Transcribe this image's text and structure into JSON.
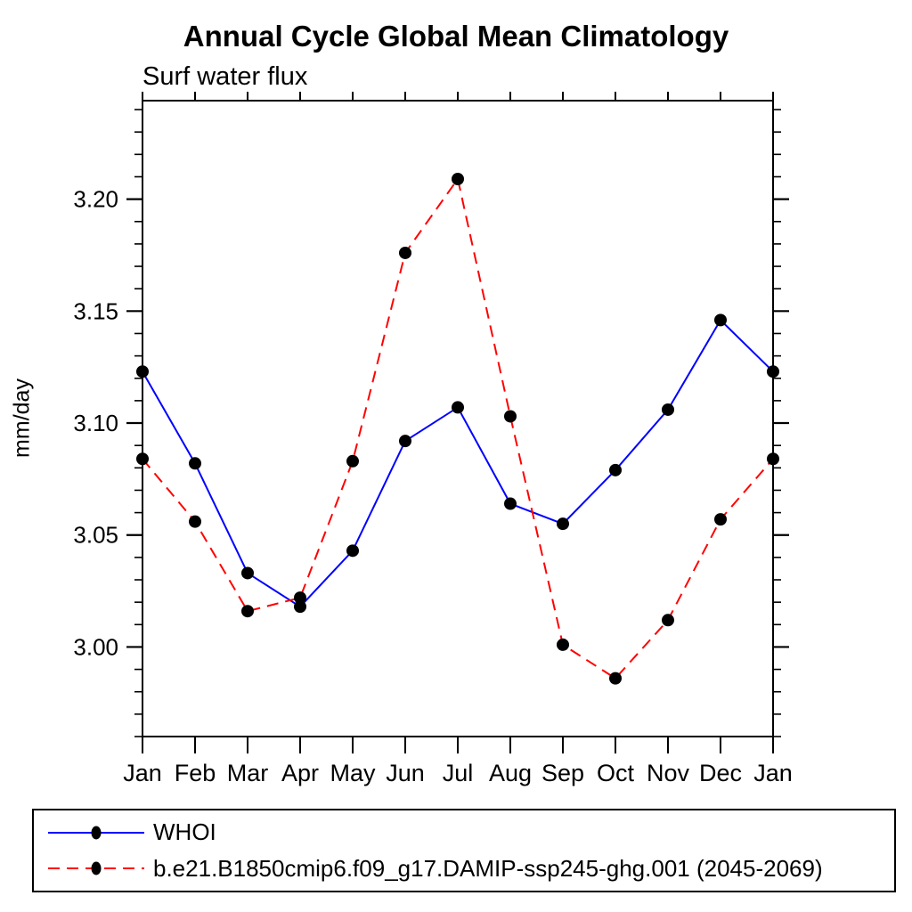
{
  "title": "Annual Cycle Global Mean Climatology",
  "subtitle": "Surf water flux",
  "chart_data": {
    "type": "line",
    "title": "Annual Cycle Global Mean Climatology",
    "subtitle": "Surf water flux",
    "xlabel": "",
    "ylabel": "mm/day",
    "categories": [
      "Jan",
      "Feb",
      "Mar",
      "Apr",
      "May",
      "Jun",
      "Jul",
      "Aug",
      "Sep",
      "Oct",
      "Nov",
      "Dec",
      "Jan"
    ],
    "series": [
      {
        "name": "WHOI",
        "color": "#0000ff",
        "style": "solid",
        "marker": "filled-circle",
        "marker_color": "#000000",
        "values": [
          3.123,
          3.082,
          3.033,
          3.018,
          3.043,
          3.092,
          3.107,
          3.064,
          3.055,
          3.079,
          3.106,
          3.146,
          3.123
        ]
      },
      {
        "name": "b.e21.B1850cmip6.f09_g17.DAMIP-ssp245-ghg.001 (2045-2069)",
        "color": "#ff0000",
        "style": "dashed",
        "marker": "filled-circle",
        "marker_color": "#000000",
        "values": [
          3.084,
          3.056,
          3.016,
          3.022,
          3.083,
          3.176,
          3.209,
          3.103,
          3.001,
          2.986,
          3.012,
          3.057,
          3.084
        ]
      }
    ],
    "ylim": [
      2.96,
      3.244
    ],
    "y_major_ticks": [
      3.0,
      3.05,
      3.1,
      3.15,
      3.2
    ],
    "y_minor_step": 0.01,
    "grid": false,
    "legend_position": "bottom",
    "axis_color": "#000000"
  }
}
